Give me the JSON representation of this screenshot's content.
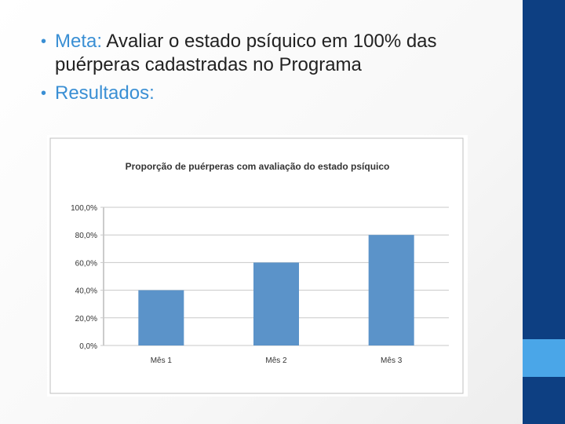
{
  "slide": {
    "bullets": [
      {
        "keyword": "Meta:",
        "text": " Avaliar o estado psíquico em 100% das puérperas cadastradas no Programa"
      },
      {
        "keyword": "",
        "text": "Resultados:"
      }
    ]
  },
  "colors": {
    "sidebar": "#0d3f82",
    "accent": "#4aa6e8",
    "bar": "#5b93c9",
    "bullet": "#3a8fd4"
  },
  "chart_data": {
    "type": "bar",
    "title": "Proporção de puérperas com avaliação do estado psíquico",
    "categories": [
      "Mês 1",
      "Mês 2",
      "Mês 3"
    ],
    "values": [
      40,
      60,
      80
    ],
    "yticks": [
      "0,0%",
      "20,0%",
      "40,0%",
      "60,0%",
      "80,0%",
      "100,0%"
    ],
    "ylim": [
      0,
      100
    ],
    "xlabel": "",
    "ylabel": "",
    "grid": true
  }
}
